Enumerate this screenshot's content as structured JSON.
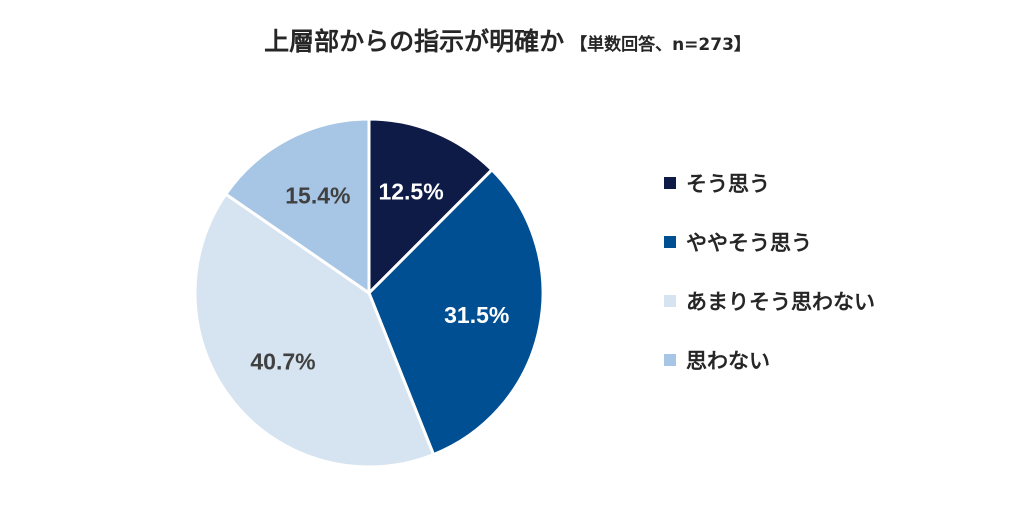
{
  "title": {
    "main": "上層部からの指示が明確か",
    "sub": "【単数回答、n=273】"
  },
  "chart_data": {
    "type": "pie",
    "title": "上層部からの指示が明確か",
    "subtitle": "【単数回答、n=273】",
    "legend_position": "right",
    "slices": [
      {
        "name": "そう思う",
        "value": 12.5,
        "label": "12.5%",
        "color": "#0f1b47",
        "label_color": "#ffffff"
      },
      {
        "name": "ややそう思う",
        "value": 31.5,
        "label": "31.5%",
        "color": "#004f93",
        "label_color": "#ffffff"
      },
      {
        "name": "あまりそう思わない",
        "value": 40.7,
        "label": "40.7%",
        "color": "#d6e3f0",
        "label_color": "#404040"
      },
      {
        "name": "思わない",
        "value": 15.4,
        "label": "15.4%",
        "color": "#a7c5e4",
        "label_color": "#404040"
      }
    ]
  }
}
